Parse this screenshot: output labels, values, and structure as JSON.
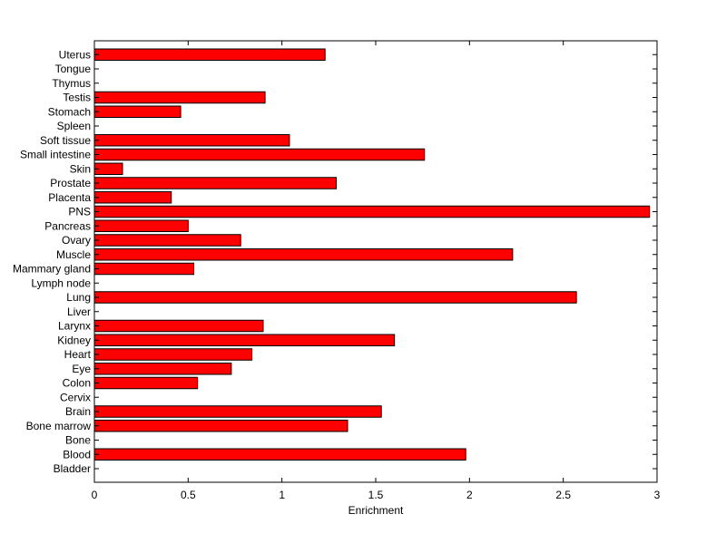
{
  "chart_data": {
    "type": "bar",
    "orientation": "horizontal",
    "xlabel": "Enrichment",
    "ylabel": "",
    "title": "",
    "xlim": [
      0,
      3
    ],
    "x_ticks": [
      0,
      0.5,
      1,
      1.5,
      2,
      2.5,
      3
    ],
    "x_tick_labels": [
      "0",
      "0.5",
      "1",
      "1.5",
      "2",
      "2.5",
      "3"
    ],
    "grid": false,
    "categories": [
      "Bladder",
      "Blood",
      "Bone",
      "Bone marrow",
      "Brain",
      "Cervix",
      "Colon",
      "Eye",
      "Heart",
      "Kidney",
      "Larynx",
      "Liver",
      "Lung",
      "Lymph node",
      "Mammary gland",
      "Muscle",
      "Ovary",
      "Pancreas",
      "PNS",
      "Placenta",
      "Prostate",
      "Skin",
      "Small intestine",
      "Soft tissue",
      "Spleen",
      "Stomach",
      "Testis",
      "Thymus",
      "Tongue",
      "Uterus"
    ],
    "values": [
      0,
      1.98,
      0,
      1.35,
      1.53,
      0,
      0.55,
      0.73,
      0.84,
      1.6,
      0.9,
      0,
      2.57,
      0,
      0.53,
      2.23,
      0.78,
      0.5,
      2.96,
      0.41,
      1.29,
      0.15,
      1.76,
      1.04,
      0,
      0.46,
      0.91,
      0,
      0,
      1.23
    ],
    "bar_color": "#ff0000",
    "edge_color": "#000000"
  }
}
